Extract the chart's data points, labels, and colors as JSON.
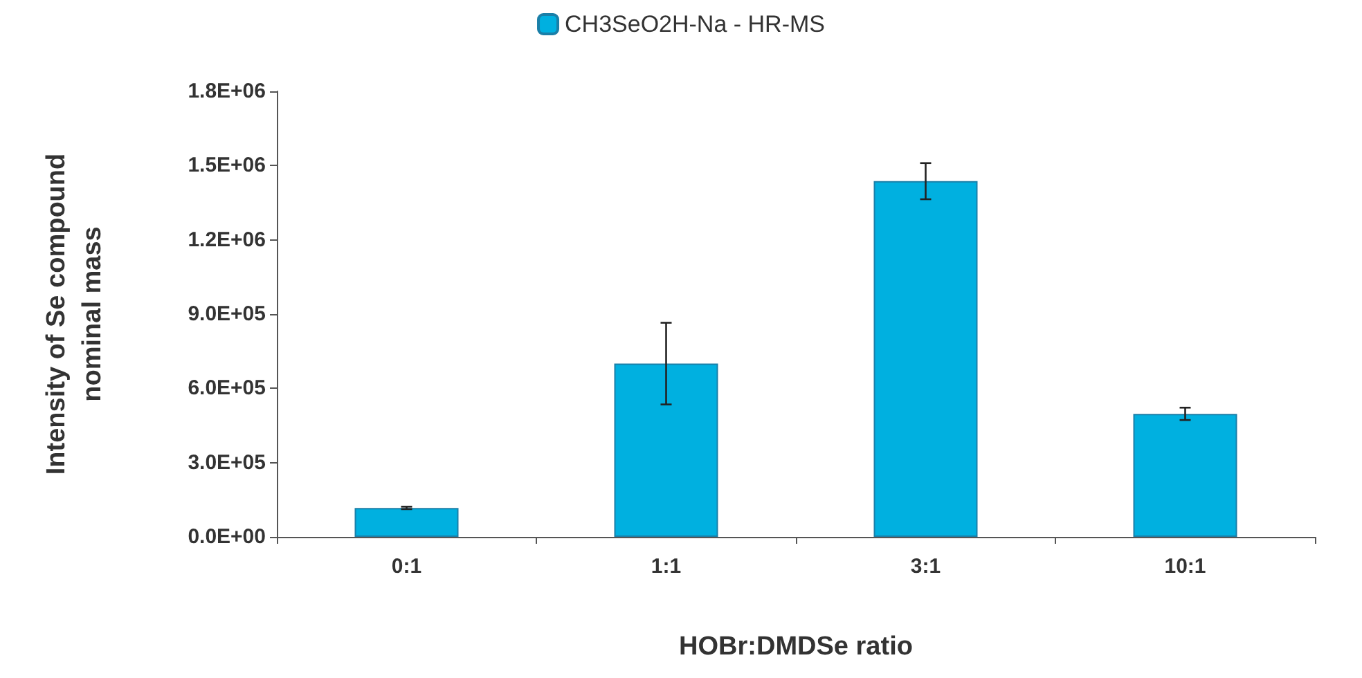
{
  "chart_data": {
    "type": "bar",
    "xlabel": "HOBr:DMDSe ratio",
    "ylabel": "Intensity of Se compound\nnominal mass",
    "categories": [
      "0:1",
      "1:1",
      "3:1",
      "10:1"
    ],
    "series": [
      {
        "name": "CH3SeO2H-Na - HR-MS",
        "color": "#00b0e0",
        "values": [
          117000,
          700000,
          1437000,
          497000
        ],
        "errors": [
          5000,
          165000,
          73000,
          25000
        ]
      }
    ],
    "ylim": [
      0,
      1800000
    ],
    "yticks": [
      {
        "value": 0,
        "label": "0.0E+00"
      },
      {
        "value": 300000,
        "label": "3.0E+05"
      },
      {
        "value": 600000,
        "label": "6.0E+05"
      },
      {
        "value": 900000,
        "label": "9.0E+05"
      },
      {
        "value": 1200000,
        "label": "1.2E+06"
      },
      {
        "value": 1500000,
        "label": "1.5E+06"
      },
      {
        "value": 1800000,
        "label": "1.8E+06"
      }
    ],
    "grid": false,
    "legend": "top"
  }
}
